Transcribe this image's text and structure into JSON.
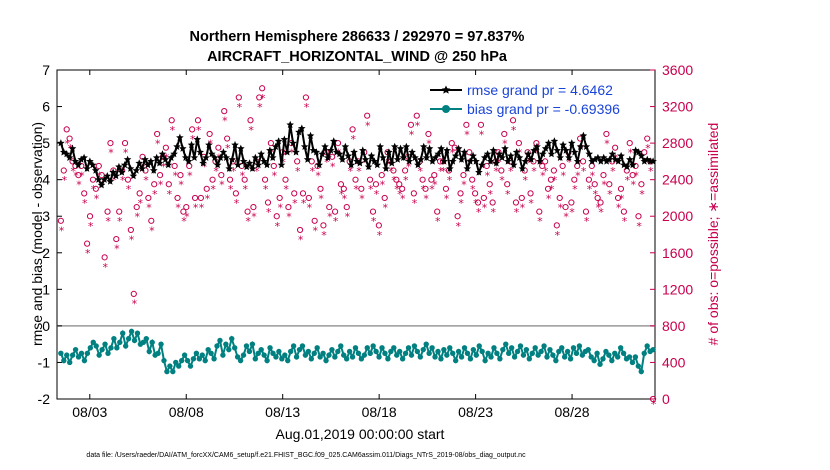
{
  "chart_data": {
    "type": "line",
    "title_line1": "Northern Hemisphere 286633 / 292970 = 97.837%",
    "title_line2": "AIRCRAFT_HORIZONTAL_WIND @ 250 hPa",
    "xlabel": "Aug.01,2019 00:00:00 start",
    "ylabel_left": "rmse and bias (model - observation)",
    "ylabel_right": "# of obs: o=possible; ∗=assimilated",
    "x_range_days": [
      1.3,
      32.3
    ],
    "ylim_left": [
      -2,
      7
    ],
    "ylim_right": [
      0,
      3600
    ],
    "x_ticks": [
      {
        "day": 3,
        "label": "08/03"
      },
      {
        "day": 8,
        "label": "08/08"
      },
      {
        "day": 13,
        "label": "08/13"
      },
      {
        "day": 18,
        "label": "08/18"
      },
      {
        "day": 23,
        "label": "08/23"
      },
      {
        "day": 28,
        "label": "08/28"
      }
    ],
    "y_ticks_left": [
      "-2",
      "-1",
      "0",
      "1",
      "2",
      "3",
      "4",
      "5",
      "6",
      "7"
    ],
    "y_ticks_right": [
      "0",
      "400",
      "800",
      "1200",
      "1600",
      "2000",
      "2400",
      "2800",
      "3200",
      "3600"
    ],
    "legend": {
      "rmse_label": "rmse grand pr = 4.6462",
      "bias_label": "bias grand pr = -0.69396",
      "position": "top-right"
    },
    "series": [
      {
        "name": "rmse",
        "color": "#000000",
        "values": [
          5.0,
          4.75,
          4.7,
          4.6,
          4.85,
          4.5,
          4.4,
          4.55,
          4.6,
          4.3,
          4.5,
          4.4,
          4.25,
          4.0,
          3.85,
          4.0,
          4.1,
          3.95,
          4.2,
          4.1,
          4.35,
          4.2,
          4.4,
          4.55,
          4.3,
          4.1,
          4.25,
          4.45,
          4.3,
          4.55,
          4.4,
          4.5,
          4.25,
          4.6,
          4.45,
          4.7,
          4.55,
          4.4,
          4.6,
          4.7,
          4.9,
          5.15,
          4.85,
          4.6,
          4.5,
          4.95,
          4.6,
          5.1,
          4.75,
          4.45,
          4.6,
          4.95,
          4.7,
          4.6,
          4.4,
          4.6,
          4.75,
          4.6,
          4.3,
          4.55,
          4.95,
          4.4,
          4.85,
          4.5,
          4.35,
          4.45,
          4.3,
          4.6,
          4.4,
          4.7,
          4.5,
          4.4,
          4.8,
          4.6,
          4.9,
          5.05,
          4.4,
          5.1,
          4.75,
          5.5,
          5.0,
          4.75,
          5.3,
          5.4,
          4.9,
          4.55,
          5.2,
          4.8,
          4.75,
          4.4,
          4.7,
          4.9,
          4.6,
          4.8,
          5.05,
          4.75,
          4.7,
          4.55,
          4.9,
          4.65,
          4.4,
          4.75,
          4.5,
          4.45,
          4.8,
          4.55,
          4.35,
          4.65,
          4.5,
          4.4,
          4.9,
          4.6,
          4.3,
          4.75,
          4.45,
          4.9,
          4.55,
          4.85,
          4.6,
          4.9,
          4.5,
          4.75,
          4.6,
          4.4,
          4.55,
          4.9,
          4.6,
          4.85,
          4.5,
          4.6,
          4.7,
          4.85,
          4.5,
          4.8,
          4.3,
          4.5,
          4.65,
          4.85,
          4.55,
          4.75,
          4.3,
          4.5,
          4.65,
          4.5,
          4.2,
          4.4,
          4.6,
          4.7,
          4.5,
          4.8,
          4.45,
          4.7,
          4.6,
          4.85,
          4.5,
          4.65,
          4.4,
          4.75,
          4.6,
          4.3,
          4.5,
          4.7,
          4.55,
          4.8,
          4.9,
          4.5,
          4.7,
          4.85,
          5.0,
          4.7,
          5.05,
          4.8,
          4.6,
          4.95,
          4.8,
          4.6,
          5.0,
          4.75,
          4.5,
          4.9,
          5.2,
          4.9,
          4.7,
          4.5,
          4.55,
          4.6,
          4.5,
          4.6,
          4.5,
          4.55,
          4.7,
          4.55,
          4.5,
          4.65,
          4.4,
          4.35,
          4.55,
          4.4,
          4.8,
          4.75,
          4.65,
          4.5,
          4.55,
          4.5,
          4.5
        ]
      },
      {
        "name": "bias",
        "color": "#008080",
        "values": [
          -0.75,
          -0.95,
          -0.8,
          -1.0,
          -0.8,
          -0.65,
          -0.85,
          -0.75,
          -0.95,
          -0.75,
          -0.6,
          -0.45,
          -0.55,
          -0.8,
          -0.65,
          -0.5,
          -0.75,
          -0.6,
          -0.35,
          -0.6,
          -0.45,
          -0.2,
          -0.55,
          -0.35,
          -0.15,
          -0.4,
          -0.2,
          -0.5,
          -0.45,
          -0.35,
          -0.7,
          -0.45,
          -0.8,
          -0.75,
          -0.5,
          -0.95,
          -1.25,
          -1.1,
          -1.25,
          -1.0,
          -1.1,
          -0.95,
          -0.8,
          -0.95,
          -1.1,
          -0.9,
          -0.75,
          -0.9,
          -0.8,
          -0.95,
          -0.65,
          -0.75,
          -0.9,
          -0.55,
          -0.4,
          -0.8,
          -0.5,
          -0.65,
          -0.35,
          -0.6,
          -0.85,
          -0.95,
          -0.8,
          -0.55,
          -0.7,
          -0.5,
          -0.9,
          -0.75,
          -0.65,
          -0.8,
          -0.95,
          -0.6,
          -0.75,
          -0.85,
          -0.7,
          -0.9,
          -0.8,
          -0.95,
          -0.7,
          -0.55,
          -0.85,
          -0.65,
          -0.55,
          -0.8,
          -0.7,
          -0.9,
          -0.75,
          -0.6,
          -0.85,
          -0.75,
          -0.95,
          -0.8,
          -0.65,
          -0.85,
          -0.7,
          -0.55,
          -0.8,
          -0.9,
          -0.7,
          -0.85,
          -0.6,
          -0.75,
          -0.9,
          -0.8,
          -0.6,
          -0.75,
          -0.55,
          -0.7,
          -0.85,
          -0.6,
          -0.75,
          -0.9,
          -0.7,
          -0.6,
          -0.8,
          -0.7,
          -0.9,
          -0.75,
          -0.6,
          -0.8,
          -0.55,
          -0.7,
          -0.85,
          -0.65,
          -0.5,
          -0.75,
          -0.6,
          -0.85,
          -0.7,
          -0.9,
          -0.65,
          -0.8,
          -0.6,
          -0.75,
          -0.95,
          -0.7,
          -0.85,
          -0.6,
          -0.75,
          -0.9,
          -0.65,
          -0.8,
          -0.55,
          -0.7,
          -0.95,
          -0.75,
          -0.85,
          -0.6,
          -0.75,
          -0.9,
          -0.65,
          -0.5,
          -0.75,
          -0.6,
          -0.85,
          -0.7,
          -0.55,
          -0.8,
          -0.65,
          -0.9,
          -0.75,
          -0.6,
          -0.8,
          -0.7,
          -0.55,
          -0.85,
          -0.65,
          -0.8,
          -0.95,
          -0.7,
          -0.6,
          -0.85,
          -0.7,
          -0.9,
          -0.6,
          -0.75,
          -0.55,
          -0.8,
          -0.7,
          -0.65,
          -0.85,
          -0.95,
          -0.75,
          -1.05,
          -0.9,
          -0.7,
          -0.8,
          -0.95,
          -0.75,
          -0.85,
          -0.6,
          -0.75,
          -0.9,
          -0.85,
          -1.0,
          -0.85,
          -1.1,
          -1.25,
          -0.75,
          -0.55,
          -0.7,
          -0.65
        ]
      },
      {
        "name": "obs possible",
        "marker": "o",
        "color": "#c8004e",
        "axis": "right",
        "values": [
          1950,
          2500,
          2950,
          2850,
          2600,
          2550,
          2450,
          2550,
          2250,
          1700,
          2000,
          2400,
          2300,
          2550,
          2450,
          1550,
          2050,
          2800,
          2500,
          1750,
          2050,
          2500,
          2800,
          2400,
          1850,
          1150,
          2100,
          2250,
          2650,
          2500,
          2200,
          1950,
          2350,
          2900,
          2450,
          2650,
          2750,
          2350,
          3050,
          2550,
          2200,
          2450,
          2050,
          2100,
          2550,
          2950,
          2200,
          3050,
          2200,
          2650,
          2300,
          2900,
          2400,
          2600,
          2750,
          2450,
          3150,
          2850,
          2400,
          2600,
          2250,
          3300,
          2550,
          2400,
          2050,
          3050,
          2100,
          2600,
          3300,
          3400,
          2400,
          2150,
          2800,
          2550,
          2000,
          2200,
          2700,
          2400,
          2100,
          2800,
          2250,
          2600,
          1850,
          2250,
          3300,
          2200,
          2600,
          1950,
          2550,
          2300,
          1900,
          2700,
          2100,
          2650,
          2050,
          2800,
          2350,
          2300,
          2100,
          2600,
          2950,
          2400,
          2600,
          2300,
          2700,
          3100,
          2400,
          2050,
          2350,
          1900,
          2450,
          2200,
          2700,
          2600,
          2500,
          2400,
          2350,
          2300,
          2500,
          2650,
          3000,
          2250,
          3100,
          2600,
          2400,
          2300,
          2900,
          2400,
          2450,
          2050,
          2600,
          2600,
          2300,
          2500,
          2800,
          2750,
          2000,
          2250,
          2450,
          3000,
          2700,
          2400,
          2250,
          2150,
          3000,
          2200,
          2550,
          2350,
          2150,
          2600,
          2700,
          2500,
          2900,
          2350,
          2600,
          3050,
          2150,
          2800,
          2200,
          2500,
          2700,
          2250,
          2600,
          2800,
          2050,
          2550,
          2600,
          2300,
          2400,
          2500,
          1900,
          2200,
          2550,
          2100,
          2700,
          2150,
          2400,
          2550,
          2850,
          2600,
          2050,
          2400,
          2550,
          2350,
          2200,
          2150,
          2450,
          2900,
          2350,
          2600,
          2750,
          2200,
          2300,
          2050,
          2500,
          2800,
          2450,
          2550,
          2000,
          2350,
          2700,
          2850,
          2600,
          0
        ]
      },
      {
        "name": "obs assimilated",
        "marker": "*",
        "color": "#c8004e",
        "axis": "right",
        "values": [
          1900,
          2450,
          2850,
          2800,
          2550,
          2500,
          2400,
          2500,
          2200,
          1650,
          1950,
          2350,
          2250,
          2500,
          2400,
          1500,
          2000,
          2750,
          2450,
          1700,
          2000,
          2450,
          2750,
          2350,
          1800,
          1100,
          2050,
          2200,
          2600,
          2450,
          2150,
          1900,
          2300,
          2850,
          2400,
          2600,
          2700,
          2300,
          3000,
          2500,
          2150,
          2400,
          2000,
          2050,
          2500,
          2900,
          2150,
          3000,
          2150,
          2600,
          2250,
          2850,
          2350,
          2550,
          2700,
          2400,
          3100,
          2800,
          2350,
          2550,
          2200,
          3250,
          2500,
          2350,
          2000,
          3000,
          2050,
          2550,
          3250,
          3350,
          2350,
          2100,
          2750,
          2500,
          1950,
          2150,
          2650,
          2350,
          2050,
          2750,
          2200,
          2550,
          1800,
          2200,
          3250,
          2150,
          2550,
          1900,
          2500,
          2250,
          1850,
          2650,
          2050,
          2600,
          2000,
          2750,
          2300,
          2250,
          2050,
          2550,
          2900,
          2350,
          2550,
          2250,
          2650,
          3050,
          2350,
          2000,
          2300,
          1850,
          2400,
          2150,
          2650,
          2550,
          2450,
          2350,
          2300,
          2250,
          2450,
          2600,
          2950,
          2200,
          3050,
          2550,
          2350,
          2250,
          2850,
          2350,
          2400,
          2000,
          2550,
          2550,
          2250,
          2450,
          2750,
          2700,
          1950,
          2200,
          2400,
          2950,
          2650,
          2350,
          2200,
          2100,
          2950,
          2150,
          2500,
          2300,
          2100,
          2550,
          2650,
          2450,
          2850,
          2300,
          2550,
          3000,
          2100,
          2750,
          2150,
          2450,
          2650,
          2200,
          2550,
          2750,
          2000,
          2500,
          2550,
          2250,
          2350,
          2450,
          1850,
          2150,
          2500,
          2050,
          2650,
          2100,
          2350,
          2500,
          2800,
          2550,
          2000,
          2350,
          2500,
          2300,
          2150,
          2100,
          2400,
          2850,
          2300,
          2550,
          2700,
          2150,
          2250,
          2000,
          2450,
          2750,
          2400,
          2500,
          1950,
          2300,
          2650,
          2800,
          2550,
          0
        ]
      }
    ]
  },
  "footer": "data file: /Users/raeder/DAI/ATM_forcXX/CAM6_setup/f.e21.FHIST_BGC.f09_025.CAM6assim.011/Diags_NTrS_2019-08/obs_diag_output.nc",
  "colors": {
    "rmse": "#000000",
    "bias": "#008080",
    "obs": "#c8004e",
    "legend_text": "#1a44d8"
  }
}
